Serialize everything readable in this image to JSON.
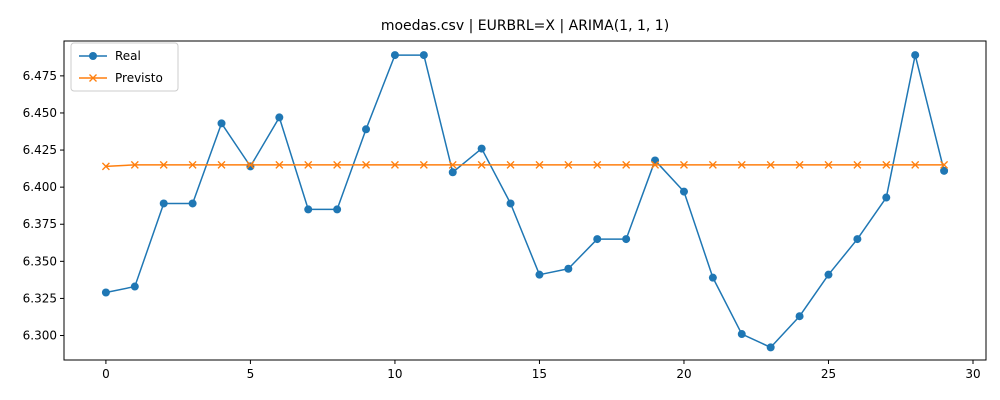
{
  "chart_data": {
    "type": "line",
    "title": "moedas.csv | EURBRL=X | ARIMA(1, 1, 1)",
    "xlabel": "",
    "ylabel": "",
    "x": [
      0,
      1,
      2,
      3,
      4,
      5,
      6,
      7,
      8,
      9,
      10,
      11,
      12,
      13,
      14,
      15,
      16,
      17,
      18,
      19,
      20,
      21,
      22,
      23,
      24,
      25,
      26,
      27,
      28,
      29
    ],
    "xlim": [
      -1.45,
      30.45
    ],
    "ylim": [
      6.2835,
      6.4985
    ],
    "x_ticks": [
      0,
      5,
      10,
      15,
      20,
      25,
      30
    ],
    "y_ticks": [
      6.3,
      6.325,
      6.35,
      6.375,
      6.4,
      6.425,
      6.45,
      6.475
    ],
    "x_tick_labels": [
      "0",
      "5",
      "10",
      "15",
      "20",
      "25",
      "30"
    ],
    "y_tick_labels": [
      "6.300",
      "6.325",
      "6.350",
      "6.375",
      "6.400",
      "6.425",
      "6.450",
      "6.475"
    ],
    "grid": false,
    "legend_position": "top-left",
    "series": [
      {
        "name": "Real",
        "color": "#1f77b4",
        "marker": "circle",
        "values": [
          6.329,
          6.333,
          6.389,
          6.389,
          6.443,
          6.414,
          6.447,
          6.385,
          6.385,
          6.439,
          6.489,
          6.489,
          6.41,
          6.426,
          6.389,
          6.341,
          6.345,
          6.365,
          6.365,
          6.418,
          6.397,
          6.339,
          6.301,
          6.292,
          6.313,
          6.341,
          6.365,
          6.393,
          6.489,
          6.411
        ]
      },
      {
        "name": "Previsto",
        "color": "#ff7f0e",
        "marker": "x",
        "values": [
          6.414,
          6.415,
          6.415,
          6.415,
          6.415,
          6.415,
          6.415,
          6.415,
          6.415,
          6.415,
          6.415,
          6.415,
          6.415,
          6.415,
          6.415,
          6.415,
          6.415,
          6.415,
          6.415,
          6.415,
          6.415,
          6.415,
          6.415,
          6.415,
          6.415,
          6.415,
          6.415,
          6.415,
          6.415,
          6.415
        ]
      }
    ]
  }
}
